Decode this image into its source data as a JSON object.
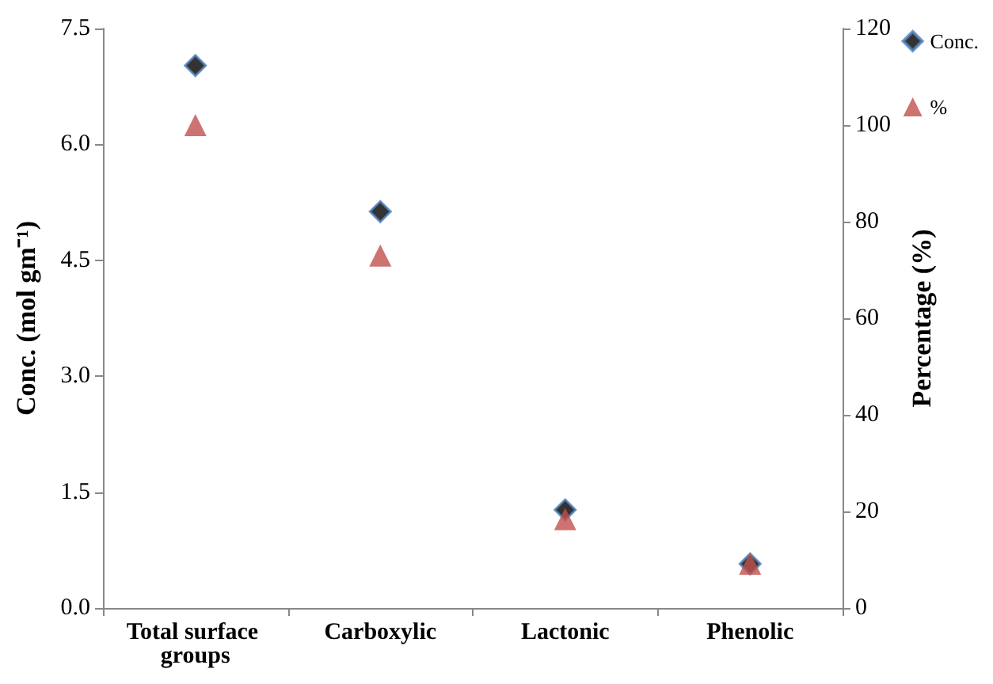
{
  "chart_data": {
    "type": "scatter",
    "categories": [
      "Total surface groups",
      "Carboxylic",
      "Lactonic",
      "Phenolic"
    ],
    "ylabel": "Conc. (mol gm⁻¹)",
    "y2label": "Percentage (%)",
    "series": [
      {
        "name": "Conc.",
        "color": "#000000",
        "marker": "diamond",
        "values": [
          7.02,
          5.13,
          1.27,
          0.57
        ]
      },
      {
        "name": "%",
        "color": "#c0504d",
        "marker": "triangle",
        "axis": "y2",
        "values": [
          100,
          73,
          18.4,
          9.2
        ]
      }
    ],
    "ylim": [
      0,
      7.5
    ],
    "yticks": [
      {
        "value": 0,
        "label": "0.0"
      },
      1.5,
      {
        "value": 3,
        "label": "3.0"
      },
      4.5,
      {
        "value": 6,
        "label": "6.0"
      },
      7.5
    ],
    "y2lim": [
      0,
      120
    ],
    "y2ticks": [
      0,
      20,
      40,
      60,
      80,
      100,
      120
    ],
    "grid": false,
    "legend": "top right"
  }
}
